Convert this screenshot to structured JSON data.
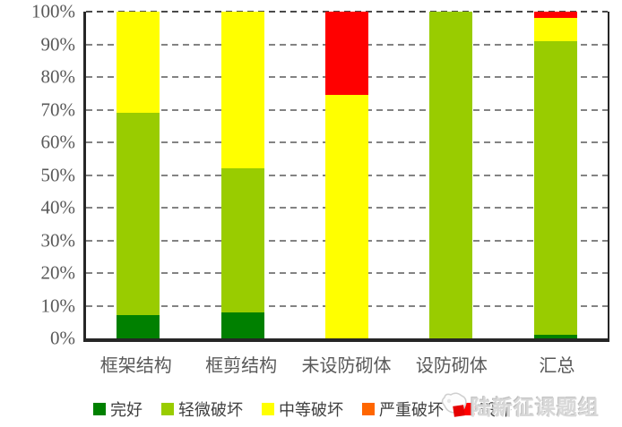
{
  "watermark": {
    "text": "陆新征课题组"
  },
  "colors": {
    "axis": "#262626",
    "gridline": "#838383",
    "top_gridline": "#4a4a4a",
    "tick_label": "#595959",
    "legend_text": "#3f3f3f"
  },
  "chart_data": {
    "type": "bar",
    "stacked": true,
    "percent_stacked": true,
    "title": "",
    "xlabel": "",
    "ylabel": "",
    "ylim": [
      0,
      100
    ],
    "yticks": [
      "0%",
      "10%",
      "20%",
      "30%",
      "40%",
      "50%",
      "60%",
      "70%",
      "80%",
      "90%",
      "100%"
    ],
    "grid": "horizontal dashed",
    "legend_position": "bottom",
    "categories": [
      "框架结构",
      "框剪结构",
      "未设防砌体",
      "设防砌体",
      "汇总"
    ],
    "series": [
      {
        "name": "完好",
        "color": "#008000",
        "values": [
          7,
          8,
          0,
          0,
          1
        ]
      },
      {
        "name": "轻微破坏",
        "color": "#99CC00",
        "values": [
          62,
          44,
          0,
          100,
          90
        ]
      },
      {
        "name": "中等破坏",
        "color": "#FFFF00",
        "values": [
          31,
          48,
          74.5,
          0,
          7
        ]
      },
      {
        "name": "严重破坏",
        "color": "#FF6600",
        "values": [
          0,
          0,
          0,
          0,
          0
        ]
      },
      {
        "name": "毁坏",
        "color": "#FF0000",
        "values": [
          0,
          0,
          25.5,
          0,
          2
        ]
      }
    ]
  }
}
